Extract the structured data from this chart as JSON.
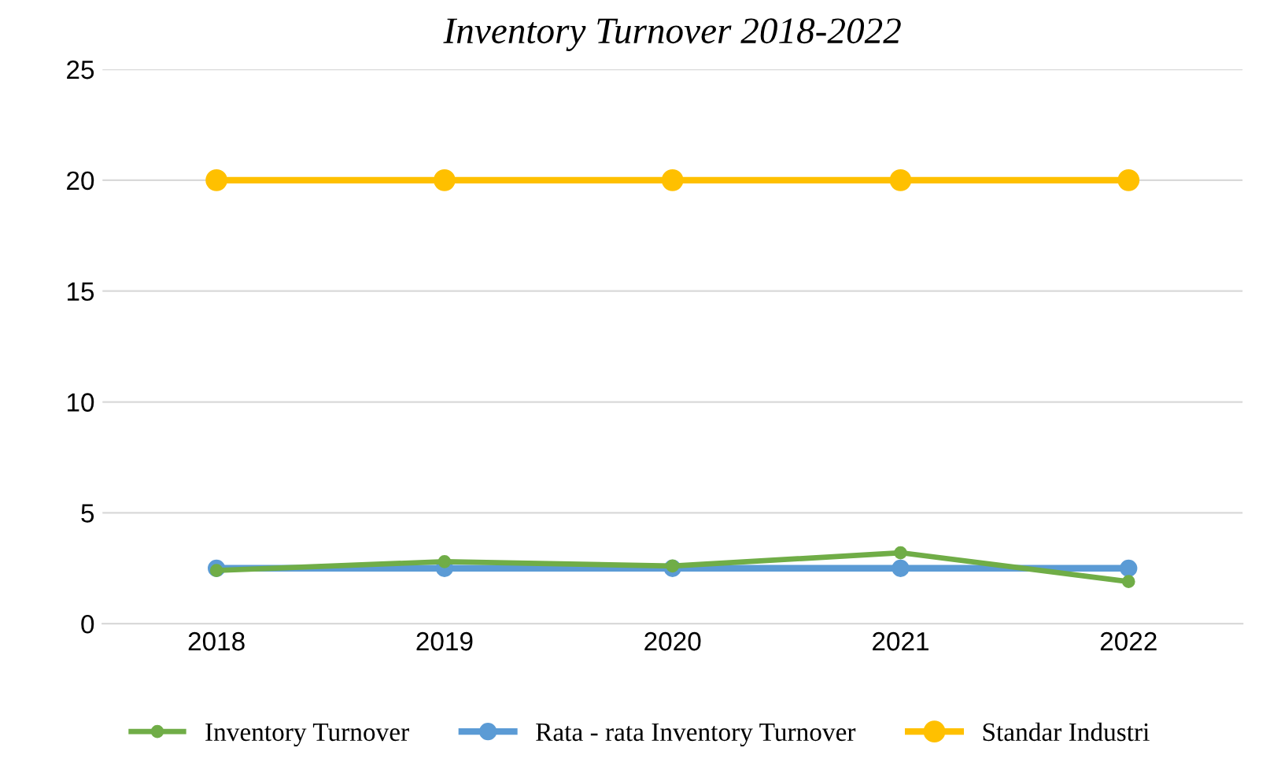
{
  "chart_data": {
    "type": "line",
    "title": "Inventory Turnover 2018-2022",
    "categories": [
      "2018",
      "2019",
      "2020",
      "2021",
      "2022"
    ],
    "series": [
      {
        "name": "Inventory Turnover",
        "color": "#70ad47",
        "values": [
          2.4,
          2.8,
          2.6,
          3.2,
          1.9
        ]
      },
      {
        "name": "Rata - rata Inventory Turnover",
        "color": "#5b9bd5",
        "values": [
          2.5,
          2.5,
          2.5,
          2.5,
          2.5
        ]
      },
      {
        "name": "Standar Industri",
        "color": "#ffc000",
        "values": [
          20,
          20,
          20,
          20,
          20
        ]
      }
    ],
    "ylim": [
      0,
      25
    ],
    "yticks": [
      0,
      5,
      10,
      15,
      20,
      25
    ],
    "grid": "y",
    "legend": "bottom",
    "marker": "circle",
    "line_style": "solid"
  }
}
